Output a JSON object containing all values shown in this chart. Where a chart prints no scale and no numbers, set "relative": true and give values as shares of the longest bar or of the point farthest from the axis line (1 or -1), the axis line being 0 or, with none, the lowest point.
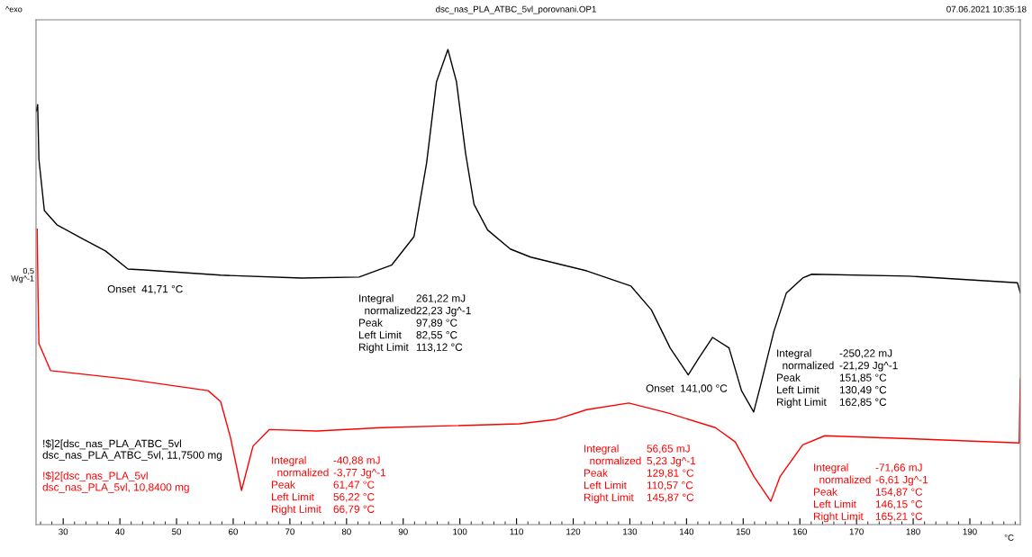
{
  "chart_data": {
    "type": "line",
    "title": "dsc_nas_PLA_ATBC_5vl_porovnani.OP1",
    "relative": true,
    "xlabel": "°C",
    "xlim": [
      25.2,
      198.9
    ],
    "xticks": [
      30,
      40,
      50,
      60,
      70,
      80,
      90,
      100,
      110,
      120,
      130,
      140,
      150,
      160,
      170,
      180,
      190
    ],
    "grid": false,
    "legend": "bottom left",
    "marker": "none",
    "line_style": "solid",
    "series": [
      {
        "name": "!$]2[dsc_nas_PLA_ATBC_5vl\ndsc_nas_PLA_ATBC_5vl, 11,7500 mg",
        "color": "#000000",
        "x": [
          25.24,
          25.49,
          25.71,
          26.67,
          28.89,
          33.49,
          37.46,
          41.43,
          44.29,
          57.78,
          72.06,
          82.22,
          87.94,
          91.9,
          94.13,
          95.87,
          97.89,
          99.4,
          101.0,
          102.5,
          104.9,
          108.9,
          112.5,
          122.4,
          130.2,
          133.8,
          137.1,
          140.3,
          142.2,
          144.6,
          147.5,
          149.7,
          151.85,
          153.0,
          155.4,
          157.6,
          160.5,
          162.1,
          179.2,
          198.4,
          198.9
        ],
        "values": [
          0.87,
          0.884,
          0.769,
          0.661,
          0.631,
          0.601,
          0.576,
          0.538,
          0.536,
          0.525,
          0.519,
          0.521,
          0.546,
          0.606,
          0.761,
          0.932,
          1.0,
          0.932,
          0.782,
          0.674,
          0.62,
          0.58,
          0.563,
          0.534,
          0.502,
          0.452,
          0.372,
          0.315,
          0.351,
          0.394,
          0.372,
          0.282,
          0.237,
          0.29,
          0.406,
          0.487,
          0.519,
          0.527,
          0.523,
          0.509,
          0.488
        ]
      },
      {
        "name": "!$]2[dsc_nas_PLA_5vl\ndsc_nas_PLA_5vl, 10,8400 mg",
        "color": "#ff0000",
        "x": [
          25.4,
          25.56,
          25.71,
          27.78,
          40.79,
          55.56,
          57.78,
          59.52,
          61.47,
          63.49,
          66.35,
          74.76,
          86.19,
          110.5,
          116.8,
          122.4,
          129.81,
          136.7,
          145.1,
          148.6,
          151.9,
          154.87,
          156.5,
          160.5,
          164.4,
          179.2,
          198.7,
          198.9
        ],
        "values": [
          0.622,
          0.479,
          0.381,
          0.324,
          0.307,
          0.282,
          0.259,
          0.183,
          0.072,
          0.165,
          0.2,
          0.197,
          0.204,
          0.212,
          0.221,
          0.242,
          0.256,
          0.235,
          0.204,
          0.174,
          0.101,
          0.049,
          0.101,
          0.168,
          0.187,
          0.181,
          0.172,
          0.307
        ]
      }
    ],
    "annotations": [
      "^exo",
      "07.06.2021 10:35:18",
      "0,5\nWg^-1",
      {
        "text": "Onset  41,71 °C",
        "x": 41.71,
        "y": 0.536
      },
      "Integral\n  normalized\nPeak\nLeft Limit\nRight Limit",
      "261,22 mJ\n22,23 Jg^-1\n97,89 °C\n82,55 °C\n113,12 °C",
      {
        "text": "Onset  141,00 °C",
        "x": 141,
        "y": 0.315
      },
      "Integral\n  normalized\nPeak\nLeft Limit\nRight Limit",
      "-250,22 mJ\n-21,29 Jg^-1\n151,85 °C\n130,49 °C\n162,85 °C",
      "Integral\n  normalized\nPeak\nLeft Limit\nRight Limit",
      "-40,88 mJ\n-3,77 Jg^-1\n61,47 °C\n56,22 °C\n66,79 °C",
      "Integral\n  normalized\nPeak\nLeft Limit\nRight Limit",
      "56,65 mJ\n5,23 Jg^-1\n129,81 °C\n110,57 °C\n145,87 °C",
      "Integral\n  normalized\nPeak\nLeft Limit\nRight Limit",
      "-71,66 mJ\n-6,61 Jg^-1\n154,87 °C\n146,15 °C\n165,21 °C"
    ]
  }
}
